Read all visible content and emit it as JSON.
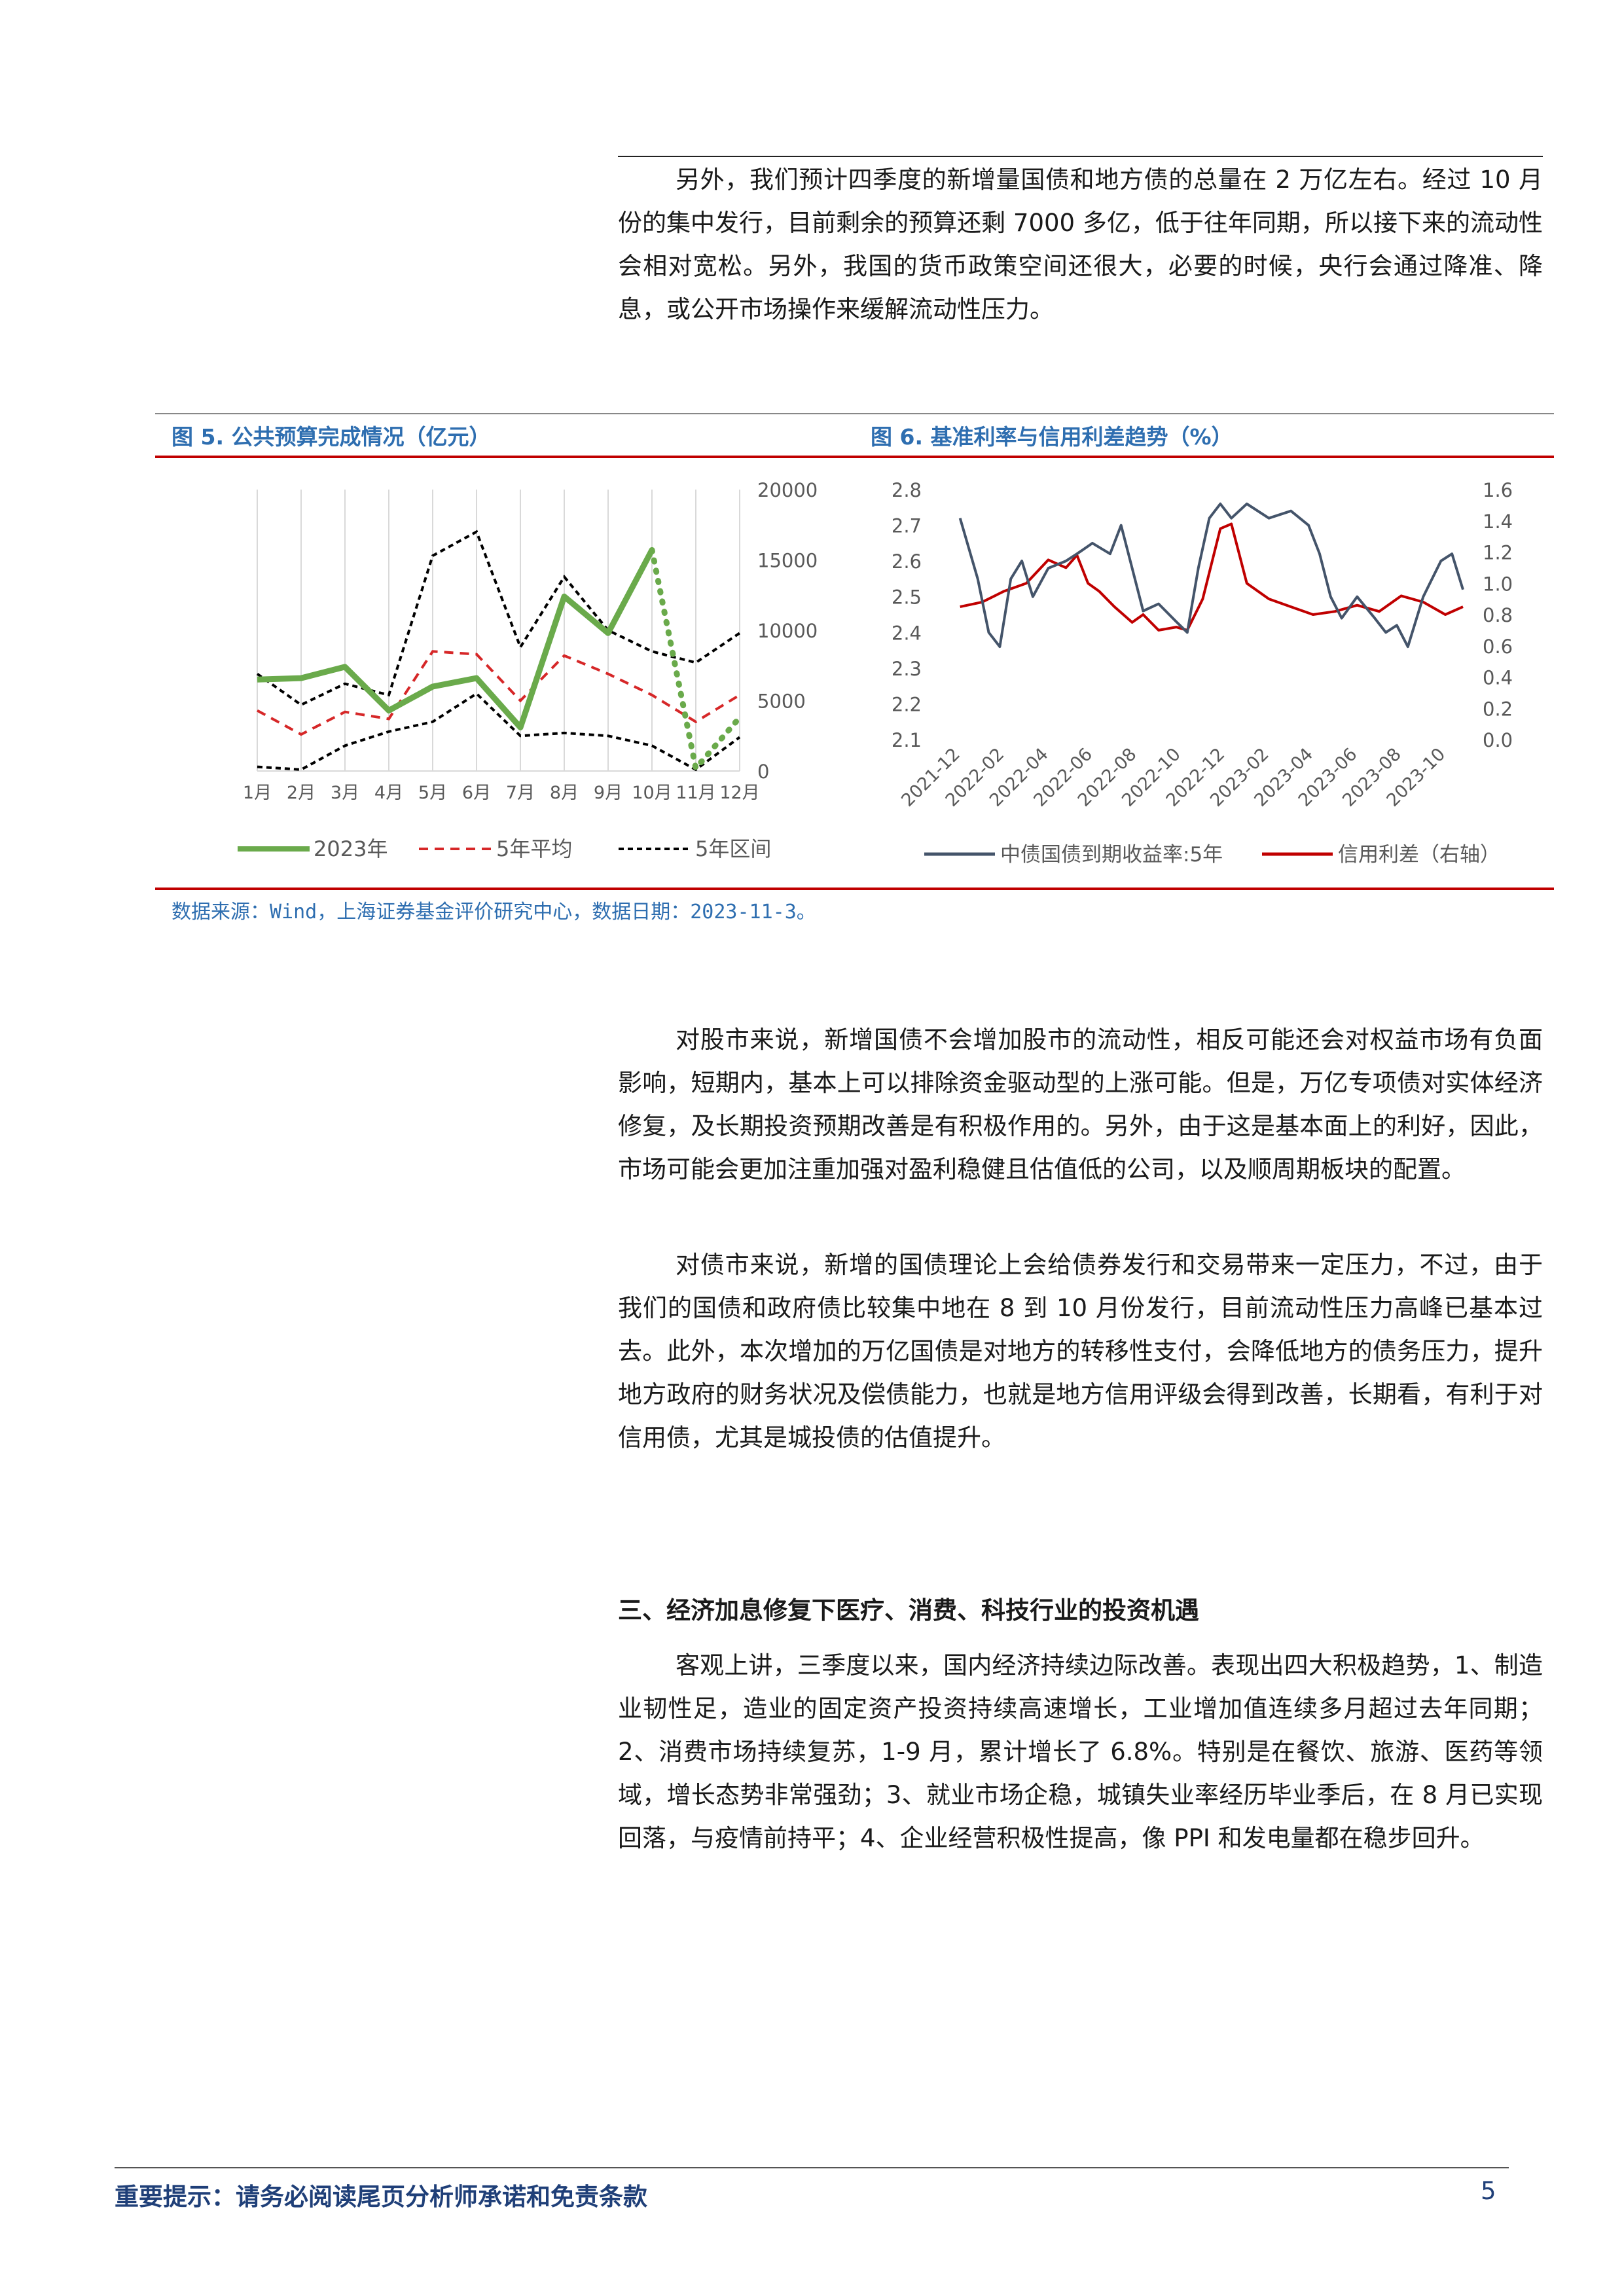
{
  "intro_paragraph": "另外，我们预计四季度的新增量国债和地方债的总量在 2 万亿左右。经过 10 月份的集中发行，目前剩余的预算还剩 7000 多亿，低于往年同期，所以接下来的流动性会相对宽松。另外，我国的货币政策空间还很大，必要的时候，央行会通过降准、降息，或公开市场操作来缓解流动性压力。",
  "figure5": {
    "title": "图 5. 公共预算完成情况（亿元）",
    "legend": {
      "s2023": "2023年",
      "avg5": "5年平均",
      "range5": "5年区间"
    }
  },
  "figure6": {
    "title": "图 6. 基准利率与信用利差趋势（%）",
    "legend": {
      "yield": "中债国债到期收益率:5年",
      "spread": "信用利差（右轴）"
    }
  },
  "source_note": "数据来源：Wind，上海证券基金评价研究中心，数据日期：2023-11-3。",
  "paragraph_stock": "对股市来说，新增国债不会增加股市的流动性，相反可能还会对权益市场有负面影响，短期内，基本上可以排除资金驱动型的上涨可能。但是，万亿专项债对实体经济修复，及长期投资预期改善是有积极作用的。另外，由于这是基本面上的利好，因此，市场可能会更加注重加强对盈利稳健且估值低的公司，以及顺周期板块的配置。",
  "paragraph_bond": "对债市来说，新增的国债理论上会给债券发行和交易带来一定压力，不过，由于我们的国债和政府债比较集中地在 8 到 10 月份发行，目前流动性压力高峰已基本过去。此外，本次增加的万亿国债是对地方的转移性支付，会降低地方的债务压力，提升地方政府的财务状况及偿债能力，也就是地方信用评级会得到改善，长期看，有利于对信用债，尤其是城投债的估值提升。",
  "section3_heading": "三、经济加息修复下医疗、消费、科技行业的投资机遇",
  "paragraph_economy": "客观上讲，三季度以来，国内经济持续边际改善。表现出四大积极趋势，1、制造业韧性足，造业的固定资产投资持续高速增长，工业增加值连续多月超过去年同期；2、消费市场持续复苏，1-9 月，累计增长了 6.8%。特别是在餐饮、旅游、医药等领域，增长态势非常强劲；3、就业市场企稳，城镇失业率经历毕业季后，在 8 月已实现回落，与疫情前持平；4、企业经营积极性提高，像 PPI 和发电量都在稳步回升。",
  "footer": {
    "note": "重要提示：请务必阅读尾页分析师承诺和免责条款",
    "page": "5"
  },
  "colors": {
    "accent_blue": "#2e6eb0",
    "rule_red": "#c00000",
    "green": "#6aaa4b",
    "red": "#d62728",
    "navy": "#44546a"
  },
  "chart_data": [
    {
      "type": "line",
      "categories": [
        "1月",
        "2月",
        "3月",
        "4月",
        "5月",
        "6月",
        "7月",
        "8月",
        "9月",
        "10月",
        "11月",
        "12月"
      ],
      "ylim": [
        0,
        20000
      ],
      "yticks": [
        0,
        5000,
        10000,
        15000,
        20000
      ],
      "y_axis_side": "right",
      "grid": "vertical",
      "legend_position": "bottom",
      "series": [
        {
          "name": "2023年",
          "style": "solid",
          "values": [
            6500,
            6600,
            7400,
            4300,
            6000,
            6600,
            3100,
            12400,
            9800,
            15700,
            null,
            null
          ],
          "projection": [
            null,
            null,
            null,
            null,
            null,
            null,
            null,
            null,
            null,
            15700,
            200,
            3800
          ]
        },
        {
          "name": "5年平均",
          "style": "dashed",
          "values": [
            4300,
            2600,
            4200,
            3700,
            8500,
            8300,
            5000,
            8200,
            6900,
            5400,
            3500,
            5400
          ]
        },
        {
          "name": "5年区间",
          "style": "dashed",
          "upper": [
            6900,
            4700,
            6200,
            5400,
            15300,
            17000,
            8800,
            13800,
            10000,
            8500,
            7700,
            9800
          ],
          "lower": [
            300,
            100,
            1800,
            2800,
            3500,
            5500,
            2500,
            2700,
            2500,
            1800,
            100,
            2400
          ]
        }
      ]
    },
    {
      "type": "line",
      "x_ticks": [
        "2021-12",
        "2022-02",
        "2022-04",
        "2022-06",
        "2022-08",
        "2022-10",
        "2022-12",
        "2023-02",
        "2023-04",
        "2023-06",
        "2023-08",
        "2023-10"
      ],
      "ylim": [
        2.1,
        2.8
      ],
      "yticks": [
        2.1,
        2.2,
        2.3,
        2.4,
        2.5,
        2.6,
        2.7,
        2.8
      ],
      "y2lim": [
        0.0,
        1.6
      ],
      "y2ticks": [
        0.0,
        0.2,
        0.4,
        0.6,
        0.8,
        1.0,
        1.2,
        1.4,
        1.6
      ],
      "legend_position": "bottom",
      "series": [
        {
          "name": "中债国债到期收益率:5年",
          "axis": "left",
          "points": [
            [
              "2021-12",
              2.72
            ],
            [
              "2022-01",
              2.55
            ],
            [
              "2022-01",
              2.4
            ],
            [
              "2022-02",
              2.36
            ],
            [
              "2022-02",
              2.55
            ],
            [
              "2022-03",
              2.6
            ],
            [
              "2022-03",
              2.5
            ],
            [
              "2022-04",
              2.58
            ],
            [
              "2022-05",
              2.6
            ],
            [
              "2022-05",
              2.62
            ],
            [
              "2022-06",
              2.65
            ],
            [
              "2022-07",
              2.62
            ],
            [
              "2022-07",
              2.7
            ],
            [
              "2022-08",
              2.58
            ],
            [
              "2022-08",
              2.46
            ],
            [
              "2022-09",
              2.48
            ],
            [
              "2022-10",
              2.43
            ],
            [
              "2022-10",
              2.4
            ],
            [
              "2022-11",
              2.58
            ],
            [
              "2022-11",
              2.72
            ],
            [
              "2022-12",
              2.76
            ],
            [
              "2022-12",
              2.72
            ],
            [
              "2023-01",
              2.76
            ],
            [
              "2023-02",
              2.72
            ],
            [
              "2023-03",
              2.74
            ],
            [
              "2023-04",
              2.7
            ],
            [
              "2023-04",
              2.62
            ],
            [
              "2023-05",
              2.5
            ],
            [
              "2023-05",
              2.44
            ],
            [
              "2023-06",
              2.5
            ],
            [
              "2023-07",
              2.44
            ],
            [
              "2023-07",
              2.4
            ],
            [
              "2023-08",
              2.42
            ],
            [
              "2023-08",
              2.36
            ],
            [
              "2023-09",
              2.5
            ],
            [
              "2023-10",
              2.6
            ],
            [
              "2023-10",
              2.62
            ],
            [
              "2023-11",
              2.52
            ]
          ]
        },
        {
          "name": "信用利差（右轴）",
          "axis": "right",
          "points": [
            [
              "2021-12",
              0.85
            ],
            [
              "2022-01",
              0.88
            ],
            [
              "2022-02",
              0.95
            ],
            [
              "2022-03",
              1.0
            ],
            [
              "2022-04",
              1.15
            ],
            [
              "2022-05",
              1.1
            ],
            [
              "2022-05",
              1.18
            ],
            [
              "2022-06",
              1.0
            ],
            [
              "2022-06",
              0.95
            ],
            [
              "2022-07",
              0.85
            ],
            [
              "2022-08",
              0.75
            ],
            [
              "2022-08",
              0.8
            ],
            [
              "2022-09",
              0.7
            ],
            [
              "2022-10",
              0.72
            ],
            [
              "2022-10",
              0.7
            ],
            [
              "2022-11",
              0.9
            ],
            [
              "2022-12",
              1.35
            ],
            [
              "2022-12",
              1.38
            ],
            [
              "2023-01",
              1.0
            ],
            [
              "2023-02",
              0.9
            ],
            [
              "2023-03",
              0.85
            ],
            [
              "2023-04",
              0.8
            ],
            [
              "2023-05",
              0.82
            ],
            [
              "2023-06",
              0.86
            ],
            [
              "2023-07",
              0.82
            ],
            [
              "2023-08",
              0.92
            ],
            [
              "2023-09",
              0.88
            ],
            [
              "2023-10",
              0.8
            ],
            [
              "2023-11",
              0.85
            ]
          ]
        }
      ]
    }
  ]
}
